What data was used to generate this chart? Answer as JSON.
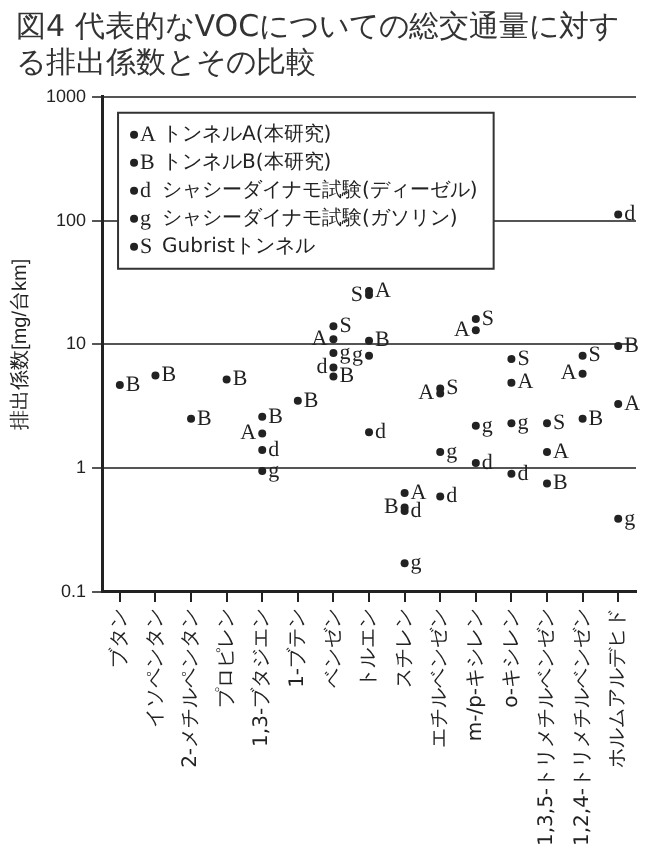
{
  "chart_data": {
    "type": "scatter",
    "title": "図4 代表的なVOCについての総交通量に対する排出係数とその比較",
    "ylabel": "排出係数[mg/台km]",
    "categories": [
      "ブタン",
      "イソペンタン",
      "2-メチルペンタン",
      "プロピレン",
      "1,3-ブタジエン",
      "1-ブテン",
      "ベンゼン",
      "トルエン",
      "スチレン",
      "エチルベンゼン",
      "m-/p-キシレン",
      "o-キシレン",
      "1,3,5-トリメチルベンゼン",
      "1,2,4-トリメチルベンゼン",
      "ホルムアルデヒド"
    ],
    "series": [
      {
        "name": "トンネルA(本研究)",
        "color": "#222222",
        "values": [
          null,
          null,
          null,
          null,
          1.9,
          null,
          11,
          27,
          0.63,
          4,
          13,
          4.9,
          1.35,
          5.8,
          3.3
        ],
        "value_labels": [
          null,
          null,
          null,
          null,
          "A",
          null,
          "A",
          "A",
          "A",
          "A",
          "A",
          "A",
          "A",
          "A",
          "A"
        ]
      },
      {
        "name": "トンネルB(本研究)",
        "color": "#222222",
        "values": [
          4.7,
          5.6,
          2.5,
          5.2,
          2.6,
          3.5,
          5.5,
          10.7,
          0.48,
          null,
          null,
          null,
          0.75,
          2.5,
          9.7
        ],
        "value_labels": [
          "B",
          "B",
          "B",
          "B",
          "B",
          "B",
          "B",
          "B",
          "B",
          null,
          null,
          null,
          "B",
          "B",
          "B"
        ]
      },
      {
        "name": "シャシーダイナモ試験(ディーゼル)",
        "color": "#222222",
        "values": [
          null,
          null,
          null,
          null,
          1.4,
          null,
          6.5,
          1.95,
          0.45,
          0.59,
          1.1,
          0.9,
          null,
          null,
          112
        ],
        "value_labels": [
          null,
          null,
          null,
          null,
          "d",
          null,
          "d",
          "d",
          "d",
          "d",
          "d",
          "d",
          null,
          null,
          "d"
        ]
      },
      {
        "name": "シャシーダイナモ試験(ガソリン)",
        "color": "#222222",
        "values": [
          null,
          null,
          null,
          null,
          0.95,
          null,
          8.5,
          8.1,
          0.17,
          1.35,
          2.2,
          2.3,
          null,
          null,
          0.39
        ],
        "value_labels": [
          null,
          null,
          null,
          null,
          "g",
          null,
          "g",
          "g",
          "g",
          "g",
          "g",
          "g",
          null,
          null,
          "g"
        ]
      },
      {
        "name": "Gubristトンネル",
        "color": "#222222",
        "values": [
          null,
          null,
          null,
          null,
          null,
          null,
          14,
          25,
          null,
          4.4,
          16,
          7.6,
          2.3,
          8.1,
          null
        ],
        "value_labels": [
          null,
          null,
          null,
          null,
          null,
          null,
          "S",
          "S",
          null,
          "S",
          "S",
          "S",
          "S",
          "S",
          null
        ]
      }
    ],
    "log": true,
    "ylim": [
      0.1,
      1000
    ],
    "yticks": [
      0.1,
      1,
      10,
      100,
      1000
    ],
    "grid": "y",
    "legend": "top left"
  }
}
